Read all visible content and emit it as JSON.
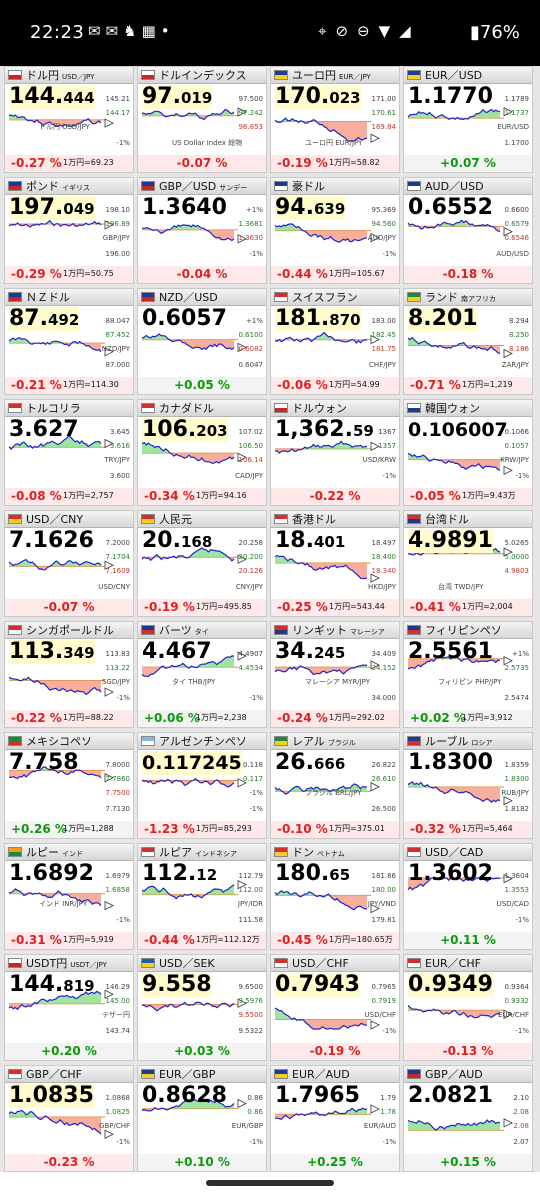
{
  "status": {
    "time": "22:23",
    "left_icons": "✉✉♞▦•",
    "right_icons": "⌖⊘⊖▼◢",
    "battery": "▮76%"
  },
  "colors": {
    "up": "#0a9a0a",
    "down": "#e0201f",
    "line": "#2222cc",
    "fill_up": "#8ee08e",
    "fill_down": "#f4a08c",
    "highlight": "#fffbcc"
  },
  "cards": [
    {
      "name": "ドル円",
      "sub": "USD／JPY",
      "price": "144.",
      "price_small": "444",
      "hl": true,
      "labels": [
        "145.21",
        "144.17",
        "ドル円 USD/JPY",
        "-1%"
      ],
      "change": "-0.27 %",
      "dir": "dn",
      "note": "1万円=69.23",
      "flag": [
        "#fff",
        "#c62828"
      ]
    },
    {
      "name": "ドルインデックス",
      "sub": "",
      "price": "97.",
      "price_small": "019",
      "hl": true,
      "labels": [
        "97.500",
        "97.242",
        "96.853",
        "US Dollar Index 総物"
      ],
      "change": "-0.07 %",
      "dir": "dn",
      "note": "",
      "flag": [
        "#fff",
        "#c62828"
      ]
    },
    {
      "name": "ユーロ円",
      "sub": "EUR／JPY",
      "price": "170.",
      "price_small": "023",
      "hl": true,
      "labels": [
        "171.00",
        "170.61",
        "169.84",
        "ユーロ円 EUR/JPY"
      ],
      "change": "-0.19 %",
      "dir": "dn",
      "note": "1万円=58.82",
      "flag": [
        "#1e3c96",
        "#f5d020"
      ]
    },
    {
      "name": "EUR／USD",
      "sub": "",
      "price": "1.1770",
      "price_small": "",
      "hl": false,
      "labels": [
        "1.1789",
        "1.1737",
        "EUR/USD",
        "1.1700"
      ],
      "change": "+0.07 %",
      "dir": "up",
      "note": "",
      "flag": [
        "#1e3c96",
        "#f5d020"
      ]
    },
    {
      "name": "ポンド",
      "sub": "イギリス",
      "price": "197.",
      "price_small": "049",
      "hl": true,
      "labels": [
        "198.10",
        "196.89",
        "GBP/JPY",
        "196.00"
      ],
      "change": "-0.29 %",
      "dir": "dn",
      "note": "1万円=50.75",
      "flag": [
        "#1e3a8a",
        "#c62828"
      ]
    },
    {
      "name": "GBP／USD",
      "sub": "サンデー",
      "price": "1.3640",
      "price_small": "",
      "hl": false,
      "labels": [
        "+1%",
        "1.3681",
        "1.3630",
        "-1%"
      ],
      "change": "-0.04 %",
      "dir": "dn",
      "note": "",
      "flag": [
        "#1e3a8a",
        "#c62828"
      ]
    },
    {
      "name": "豪ドル",
      "sub": "",
      "price": "94.",
      "price_small": "639",
      "hl": true,
      "labels": [
        "95.369",
        "94.560",
        "AUD/JPY",
        "-1%"
      ],
      "change": "-0.44 %",
      "dir": "dn",
      "note": "1万円=105.67",
      "flag": [
        "#1e3a8a",
        "#fff"
      ]
    },
    {
      "name": "AUD／USD",
      "sub": "",
      "price": "0.6552",
      "price_small": "",
      "hl": false,
      "labels": [
        "0.6600",
        "0.6579",
        "0.6546",
        "AUD/USD"
      ],
      "change": "-0.18 %",
      "dir": "dn",
      "note": "",
      "flag": [
        "#1e3a8a",
        "#fff"
      ]
    },
    {
      "name": "ＮＺドル",
      "sub": "",
      "price": "87.",
      "price_small": "492",
      "hl": true,
      "labels": [
        "88.047",
        "87.452",
        "NZD/JPY",
        "87.000"
      ],
      "change": "-0.21 %",
      "dir": "dn",
      "note": "1万円=114.30",
      "flag": [
        "#1e3a8a",
        "#c62828"
      ]
    },
    {
      "name": "NZD／USD",
      "sub": "",
      "price": "0.6057",
      "price_small": "",
      "hl": false,
      "labels": [
        "+1%",
        "0.6100",
        "0.6082",
        "0.6047"
      ],
      "change": "+0.05 %",
      "dir": "up",
      "note": "",
      "flag": [
        "#1e3a8a",
        "#c62828"
      ]
    },
    {
      "name": "スイスフラン",
      "sub": "",
      "price": "181.",
      "price_small": "870",
      "hl": true,
      "labels": [
        "183.00",
        "182.45",
        "181.75",
        "CHF/JPY"
      ],
      "change": "-0.06 %",
      "dir": "dn",
      "note": "1万円=54.99",
      "flag": [
        "#d32f2f",
        "#fff"
      ]
    },
    {
      "name": "ランド",
      "sub": "南アフリカ",
      "price": "8.201",
      "price_small": "",
      "hl": true,
      "labels": [
        "8.294",
        "8.250",
        "8.186",
        "ZAR/JPY"
      ],
      "change": "-0.71 %",
      "dir": "dn",
      "note": "1万円=1,219",
      "flag": [
        "#1b8a3a",
        "#f5d020"
      ]
    },
    {
      "name": "トルコリラ",
      "sub": "",
      "price": "3.627",
      "price_small": "",
      "hl": false,
      "labels": [
        "3.645",
        "3.616",
        "TRY/JPY",
        "3.600"
      ],
      "change": "-0.08 %",
      "dir": "dn",
      "note": "1万円=2,757",
      "flag": [
        "#d32f2f",
        "#fff"
      ]
    },
    {
      "name": "カナダドル",
      "sub": "",
      "price": "106.",
      "price_small": "203",
      "hl": true,
      "labels": [
        "107.02",
        "106.50",
        "106.14",
        "CAD/JPY"
      ],
      "change": "-0.34 %",
      "dir": "dn",
      "note": "1万円=94.16",
      "flag": [
        "#d32f2f",
        "#fff"
      ]
    },
    {
      "name": "ドルウォン",
      "sub": "",
      "price": "1,362.",
      "price_small": "59",
      "hl": false,
      "labels": [
        "1367",
        "1357",
        "USD/KRW",
        "-1%"
      ],
      "change": "-0.22 %",
      "dir": "dn",
      "note": "",
      "flag": [
        "#fff",
        "#c62828"
      ]
    },
    {
      "name": "韓国ウォン",
      "sub": "",
      "price": "0.106007",
      "price_small": "",
      "hl": false,
      "labels": [
        "0.1066",
        "0.1057",
        "KRW/JPY",
        "-1%"
      ],
      "change": "-0.05 %",
      "dir": "dn",
      "note": "1万円=9.43万",
      "flag": [
        "#fff",
        "#1e3a8a"
      ]
    },
    {
      "name": "USD／CNY",
      "sub": "",
      "price": "7.1626",
      "price_small": "",
      "hl": false,
      "labels": [
        "7.2000",
        "7.1704",
        "7.1609",
        "USD/CNY"
      ],
      "change": "-0.07 %",
      "dir": "dn",
      "note": "",
      "flag": [
        "#d32f2f",
        "#f5d020"
      ]
    },
    {
      "name": "人民元",
      "sub": "",
      "price": "20.",
      "price_small": "168",
      "hl": false,
      "labels": [
        "20.258",
        "20.200",
        "20.126",
        "CNY/JPY"
      ],
      "change": "-0.19 %",
      "dir": "dn",
      "note": "1万円=495.85",
      "flag": [
        "#d32f2f",
        "#f5d020"
      ]
    },
    {
      "name": "香港ドル",
      "sub": "",
      "price": "18.",
      "price_small": "401",
      "hl": false,
      "labels": [
        "18.497",
        "18.400",
        "18.340",
        "HKD/JPY"
      ],
      "change": "-0.25 %",
      "dir": "dn",
      "note": "1万円=543.44",
      "flag": [
        "#d32f2f",
        "#fff"
      ]
    },
    {
      "name": "台湾ドル",
      "sub": "",
      "price": "4.9891",
      "price_small": "",
      "hl": true,
      "labels": [
        "5.0265",
        "5.0000",
        "4.9803",
        "台湾 TWD/JPY"
      ],
      "change": "-0.41 %",
      "dir": "dn",
      "note": "1万円=2,004",
      "flag": [
        "#d32f2f",
        "#1e3a8a"
      ]
    },
    {
      "name": "シンガポールドル",
      "sub": "",
      "price": "113.",
      "price_small": "349",
      "hl": true,
      "labels": [
        "113.83",
        "113.22",
        "SGD/JPY",
        "-1%"
      ],
      "change": "-0.22 %",
      "dir": "dn",
      "note": "1万円=88.22",
      "flag": [
        "#d32f2f",
        "#fff"
      ]
    },
    {
      "name": "バーツ",
      "sub": "タイ",
      "price": "4.467",
      "price_small": "",
      "hl": false,
      "labels": [
        "4.4907",
        "4.4534",
        "タイ THB/JPY",
        "-1%"
      ],
      "change": "+0.06 %",
      "dir": "up",
      "note": "1万円=2,238",
      "flag": [
        "#1e3a8a",
        "#d32f2f"
      ]
    },
    {
      "name": "リンギット",
      "sub": "マレーシア",
      "price": "34.",
      "price_small": "245",
      "hl": false,
      "labels": [
        "34.409",
        "34.152",
        "マレーシア MYR/JPY",
        "34.000"
      ],
      "change": "-0.24 %",
      "dir": "dn",
      "note": "1万円=292.02",
      "flag": [
        "#d32f2f",
        "#1e3a8a"
      ]
    },
    {
      "name": "フィリピンペソ",
      "sub": "",
      "price": "2.5561",
      "price_small": "",
      "hl": false,
      "labels": [
        "+1%",
        "2.5735",
        "フィリピン PHP/JPY",
        "2.5474"
      ],
      "change": "+0.02 %",
      "dir": "up",
      "note": "1万円=3,912",
      "flag": [
        "#1e3a8a",
        "#d32f2f"
      ]
    },
    {
      "name": "メキシコペソ",
      "sub": "",
      "price": "7.758",
      "price_small": "",
      "hl": false,
      "labels": [
        "7.8000",
        "7.7860",
        "7.7500",
        "7.7130"
      ],
      "change": "+0.26 %",
      "dir": "up",
      "note": "1万円=1,288",
      "flag": [
        "#1b8a3a",
        "#d32f2f"
      ]
    },
    {
      "name": "アルゼンチンペソ",
      "sub": "",
      "price": "0.117245",
      "price_small": "",
      "hl": true,
      "labels": [
        "0.118",
        "0.117",
        "-1%",
        "-1%"
      ],
      "change": "-1.23 %",
      "dir": "dn",
      "note": "1万円=85,293",
      "flag": [
        "#7fb8e6",
        "#fff"
      ]
    },
    {
      "name": "レアル",
      "sub": "ブラジル",
      "price": "26.",
      "price_small": "666",
      "hl": false,
      "labels": [
        "26.822",
        "26.610",
        "ブラジル BRL/JPY",
        "26.500"
      ],
      "change": "-0.10 %",
      "dir": "dn",
      "note": "1万円=375.01",
      "flag": [
        "#1b8a3a",
        "#f5d020"
      ]
    },
    {
      "name": "ルーブル",
      "sub": "ロシア",
      "price": "1.8300",
      "price_small": "",
      "hl": false,
      "labels": [
        "1.8359",
        "1.8300",
        "RUB/JPY",
        "1.8182"
      ],
      "change": "-0.32 %",
      "dir": "dn",
      "note": "1万円=5,464",
      "flag": [
        "#1e3a8a",
        "#d32f2f"
      ]
    },
    {
      "name": "ルピー",
      "sub": "インド",
      "price": "1.6892",
      "price_small": "",
      "hl": false,
      "labels": [
        "1.6979",
        "1.6858",
        "インド INR/JPY",
        "-1%"
      ],
      "change": "-0.31 %",
      "dir": "dn",
      "note": "1万円=5,919",
      "flag": [
        "#f39c12",
        "#1b8a3a"
      ]
    },
    {
      "name": "ルピア",
      "sub": "インドネシア",
      "price": "112.",
      "price_small": "12",
      "hl": false,
      "labels": [
        "112.79",
        "112.00",
        "JPY/IDR",
        "111.58"
      ],
      "change": "-0.44 %",
      "dir": "dn",
      "note": "1万円=112.12万",
      "flag": [
        "#d32f2f",
        "#fff"
      ]
    },
    {
      "name": "ドン",
      "sub": "ベトナム",
      "price": "180.",
      "price_small": "65",
      "hl": false,
      "labels": [
        "181.86",
        "180.00",
        "JPY/VND",
        "179.81"
      ],
      "change": "-0.45 %",
      "dir": "dn",
      "note": "1万円=180.65万",
      "flag": [
        "#d32f2f",
        "#f5d020"
      ]
    },
    {
      "name": "USD／CAD",
      "sub": "",
      "price": "1.3602",
      "price_small": "",
      "hl": false,
      "labels": [
        "1.3604",
        "1.3553",
        "USD/CAD",
        "-1%"
      ],
      "change": "+0.11 %",
      "dir": "up",
      "note": "",
      "flag": [
        "#d32f2f",
        "#fff"
      ]
    },
    {
      "name": "USDT円",
      "sub": "USDT／JPY",
      "price": "144.",
      "price_small": "819",
      "hl": false,
      "labels": [
        "146.29",
        "145.00",
        "テザー円",
        "143.74"
      ],
      "change": "+0.20 %",
      "dir": "up",
      "note": "",
      "flag": [
        "#fff",
        "#c62828"
      ]
    },
    {
      "name": "USD／SEK",
      "sub": "",
      "price": "9.558",
      "price_small": "",
      "hl": true,
      "labels": [
        "9.6500",
        "9.5976",
        "9.5500",
        "9.5322"
      ],
      "change": "+0.03 %",
      "dir": "up",
      "note": "",
      "flag": [
        "#1e5fa8",
        "#f5d020"
      ]
    },
    {
      "name": "USD／CHF",
      "sub": "",
      "price": "0.7943",
      "price_small": "",
      "hl": true,
      "labels": [
        "0.7965",
        "0.7919",
        "USD/CHF",
        "-1%"
      ],
      "change": "-0.19 %",
      "dir": "dn",
      "note": "",
      "flag": [
        "#d32f2f",
        "#fff"
      ]
    },
    {
      "name": "EUR／CHF",
      "sub": "",
      "price": "0.9349",
      "price_small": "",
      "hl": true,
      "labels": [
        "0.9364",
        "0.9332",
        "EUR/CHF",
        "-1%"
      ],
      "change": "-0.13 %",
      "dir": "dn",
      "note": "",
      "flag": [
        "#d32f2f",
        "#fff"
      ]
    },
    {
      "name": "GBP／CHF",
      "sub": "",
      "price": "1.0835",
      "price_small": "",
      "hl": true,
      "labels": [
        "1.0868",
        "1.0825",
        "GBP/CHF",
        "-1%"
      ],
      "change": "-0.23 %",
      "dir": "dn",
      "note": "",
      "flag": [
        "#d32f2f",
        "#fff"
      ]
    },
    {
      "name": "EUR／GBP",
      "sub": "",
      "price": "0.8628",
      "price_small": "",
      "hl": false,
      "labels": [
        "0.86",
        "0.86",
        "EUR/GBP",
        "-1%"
      ],
      "change": "+0.10 %",
      "dir": "up",
      "note": "",
      "flag": [
        "#1e3c96",
        "#f5d020"
      ]
    },
    {
      "name": "EUR／AUD",
      "sub": "",
      "price": "1.7965",
      "price_small": "",
      "hl": false,
      "labels": [
        "1.79",
        "1.78",
        "EUR/AUD",
        "-1%"
      ],
      "change": "+0.25 %",
      "dir": "up",
      "note": "",
      "flag": [
        "#1e3c96",
        "#f5d020"
      ]
    },
    {
      "name": "GBP／AUD",
      "sub": "",
      "price": "2.0821",
      "price_small": "",
      "hl": false,
      "labels": [
        "2.10",
        "2.08",
        "2.08",
        "2.07"
      ],
      "change": "+0.15 %",
      "dir": "up",
      "note": "",
      "flag": [
        "#1e3a8a",
        "#c62828"
      ]
    }
  ]
}
